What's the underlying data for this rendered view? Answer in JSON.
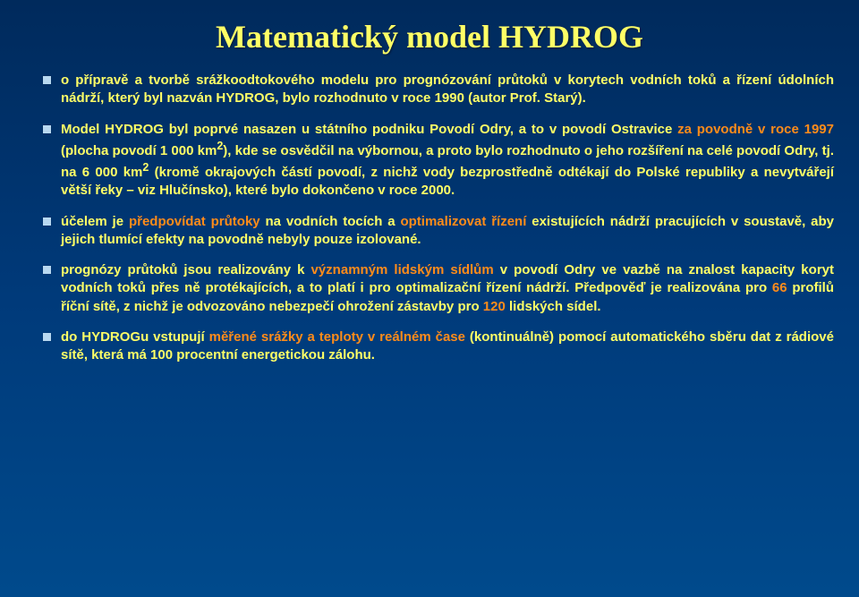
{
  "title": "Matematický model HYDROG",
  "bullets": [
    {
      "parts": [
        {
          "text": "o přípravě a tvorbě srážkoodtokového modelu pro prognózování průtoků v korytech vodních toků a řízení údolních nádrží, který byl nazván HYDROG, bylo rozhodnuto v roce 1990 (autor Prof. Starý)."
        }
      ]
    },
    {
      "parts": [
        {
          "text": "Model HYDROG byl poprvé nasazen u státního podniku Povodí Odry, a to v povodí Ostravice "
        },
        {
          "text": "za povodně v roce 1997",
          "orange": true
        },
        {
          "text": " (plocha povodí 1 000 km"
        },
        {
          "text": "2",
          "sup": true
        },
        {
          "text": "), kde se osvědčil na výbornou, a proto bylo rozhodnuto o jeho rozšíření na celé povodí Odry, tj. na 6 000 km"
        },
        {
          "text": "2",
          "sup": true
        },
        {
          "text": " (kromě okrajových částí povodí, z nichž vody bezprostředně odtékají do Polské republiky a nevytvářejí větší řeky – viz Hlučínsko), které bylo dokončeno v roce 2000."
        }
      ]
    },
    {
      "parts": [
        {
          "text": "účelem je "
        },
        {
          "text": "předpovídat průtoky",
          "orange": true
        },
        {
          "text": " na vodních tocích a "
        },
        {
          "text": "optimalizovat řízení",
          "orange": true
        },
        {
          "text": " existujících nádrží pracujících v soustavě, aby jejich tlumící efekty na povodně nebyly pouze izolované."
        }
      ]
    },
    {
      "parts": [
        {
          "text": "prognózy průtoků jsou realizovány k "
        },
        {
          "text": "významným lidským sídlům",
          "orange": true
        },
        {
          "text": " v povodí Odry ve vazbě na znalost kapacity koryt vodních toků přes ně protékajících, a to platí i pro optimalizační řízení nádrží. Předpověď je realizována pro "
        },
        {
          "text": "66",
          "orange": true
        },
        {
          "text": " profilů říční sítě, z nichž je odvozováno nebezpečí ohrožení zástavby pro "
        },
        {
          "text": "120",
          "orange": true
        },
        {
          "text": " lidských sídel."
        }
      ]
    },
    {
      "parts": [
        {
          "text": "do HYDROGu vstupují "
        },
        {
          "text": "měřené srážky a teploty v reálném čase",
          "orange": true
        },
        {
          "text": " (kontinuálně) pomocí automatického sběru dat z rádiové sítě, která má 100 procentní energetickou zálohu."
        }
      ]
    }
  ]
}
